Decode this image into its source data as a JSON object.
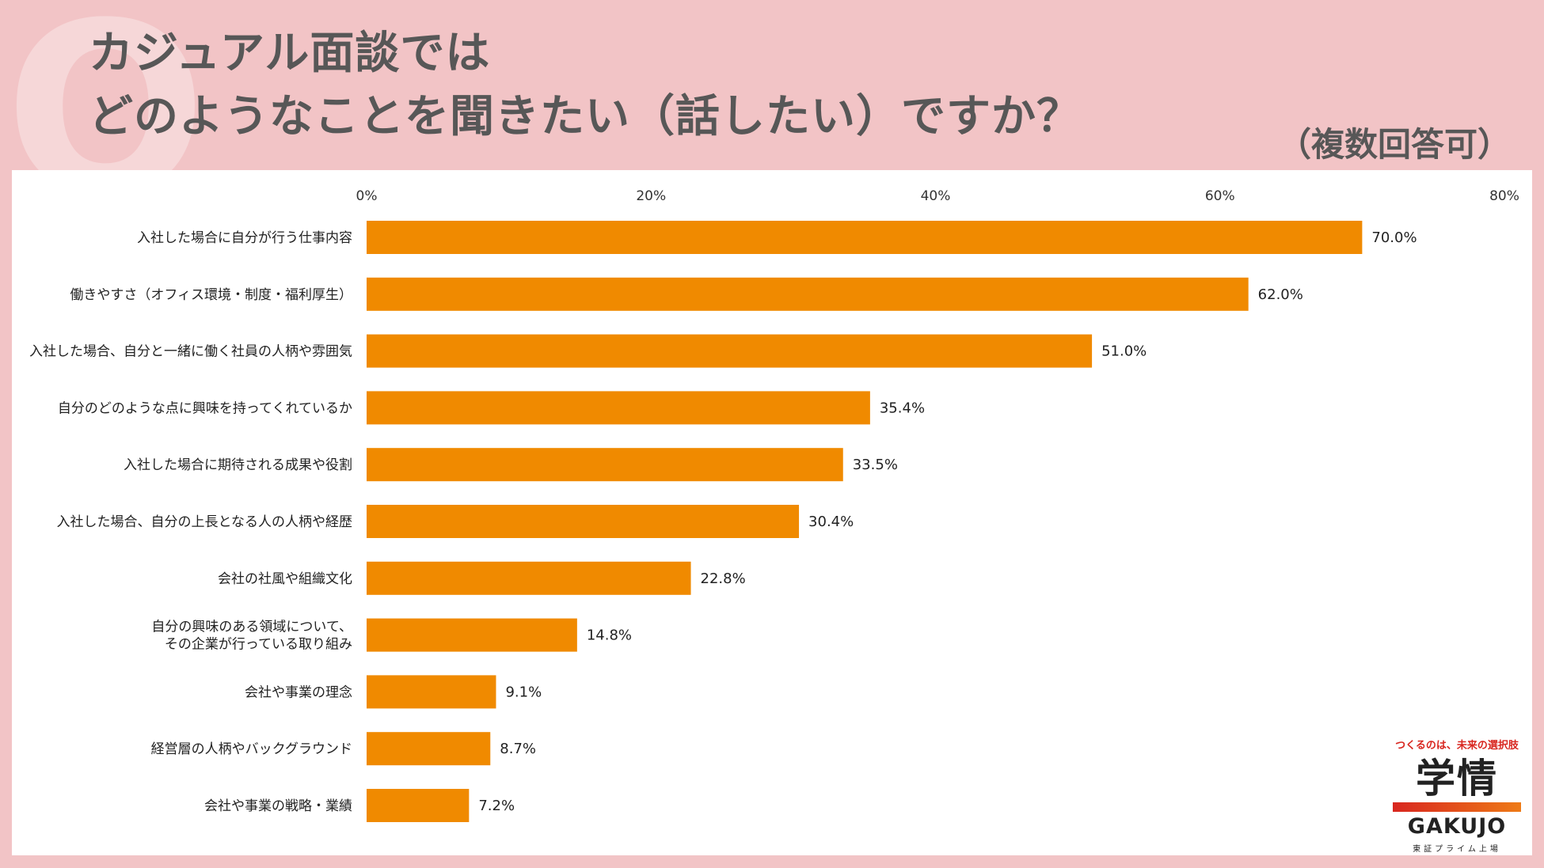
{
  "header": {
    "title_line1": "カジュアル面談では",
    "title_line2": "どのようなことを聞きたい（話したい）ですか？",
    "subtitle": "（複数回答可）",
    "decoration_letter": "Q"
  },
  "logo": {
    "tagline": "つくるのは、未来の選択肢",
    "mark": "学情",
    "name_en": "GAKUJO",
    "sub": "東証プライム上場"
  },
  "colors": {
    "bar": "#f08a00",
    "background": "#f2c4c6",
    "text": "#575757"
  },
  "chart_data": {
    "type": "bar",
    "orientation": "horizontal",
    "categories": [
      [
        "入社した場合に自分が行う仕事内容"
      ],
      [
        "働きやすさ（オフィス環境・制度・福利厚生）"
      ],
      [
        "入社した場合、自分と一緒に働く社員の人柄や雰囲気"
      ],
      [
        "自分のどのような点に興味を持ってくれているか"
      ],
      [
        "入社した場合に期待される成果や役割"
      ],
      [
        "入社した場合、自分の上長となる人の人柄や経歴"
      ],
      [
        "会社の社風や組織文化"
      ],
      [
        "自分の興味のある領域について、",
        "その企業が行っている取り組み"
      ],
      [
        "会社や事業の理念"
      ],
      [
        "経営層の人柄やバックグラウンド"
      ],
      [
        "会社や事業の戦略・業績"
      ]
    ],
    "values": [
      70.0,
      62.0,
      51.0,
      35.4,
      33.5,
      30.4,
      22.8,
      14.8,
      9.1,
      8.7,
      7.2
    ],
    "value_labels": [
      "70.0%",
      "62.0%",
      "51.0%",
      "35.4%",
      "33.5%",
      "30.4%",
      "22.8%",
      "14.8%",
      "9.1%",
      "8.7%",
      "7.2%"
    ],
    "xlim": [
      0,
      80
    ],
    "x_ticks": [
      0,
      20,
      40,
      60,
      80
    ],
    "x_tick_labels": [
      "0%",
      "20%",
      "40%",
      "60%",
      "80%"
    ],
    "grid": false,
    "legend": "none"
  }
}
